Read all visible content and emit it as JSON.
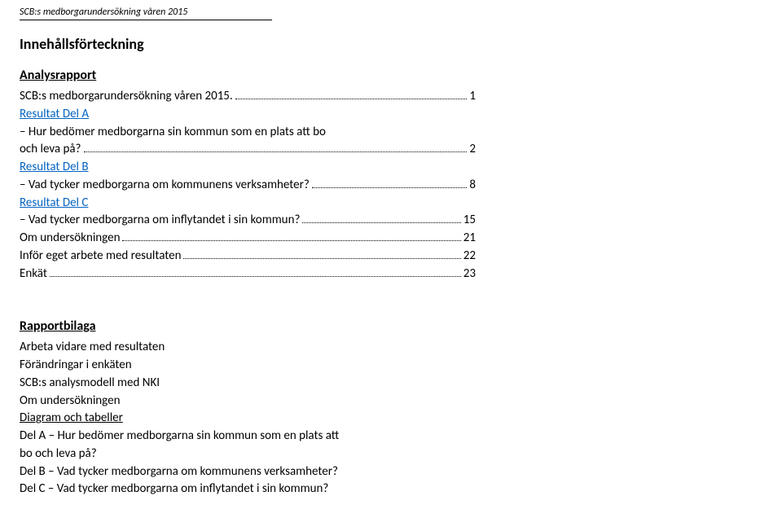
{
  "header": {
    "text": "SCB:s medborgarundersökning våren 2015"
  },
  "tocTitle": "Innehållsförteckning",
  "sectionA": {
    "heading": "Analysrapport",
    "rows": [
      {
        "text": "SCB:s medborgarundersökning våren 2015.",
        "page": "1",
        "linked": false
      },
      {
        "text": "Resultat Del A",
        "linked": true,
        "noPage": true
      },
      {
        "prefix": "–",
        "text": "Hur bedömer medborgarna sin kommun som en plats att bo",
        "noPage": true
      },
      {
        "text": "och leva på?",
        "page": "2"
      },
      {
        "text": "Resultat Del B",
        "linked": true,
        "noPage": true
      },
      {
        "prefix": "–",
        "text": "Vad tycker medborgarna om kommunens verksamheter?",
        "page": "8"
      },
      {
        "text": "Resultat Del C",
        "linked": true,
        "noPage": true
      },
      {
        "prefix": "–",
        "text": "Vad tycker medborgarna om inflytandet i sin kommun?",
        "page": "15"
      },
      {
        "text": "Om undersökningen",
        "page": "21"
      },
      {
        "text": "Inför eget arbete med resultaten",
        "page": "22"
      },
      {
        "text": "Enkät",
        "page": "23"
      }
    ]
  },
  "sectionB": {
    "heading": "Rapportbilaga",
    "lines": [
      {
        "text": "Arbeta vidare med resultaten"
      },
      {
        "text": "Förändringar i enkäten"
      },
      {
        "text": "SCB:s analysmodell med NKI"
      },
      {
        "text": "Om undersökningen"
      },
      {
        "text": "Diagram och tabeller",
        "underline": true
      },
      {
        "text": "Del A – Hur bedömer medborgarna sin kommun som en plats att"
      },
      {
        "text": "bo och leva på?"
      },
      {
        "text": "Del B – Vad tycker medborgarna om kommunens verksamheter?"
      },
      {
        "text": "Del C – Vad tycker medborgarna om inflytandet i sin kommun?"
      }
    ]
  }
}
